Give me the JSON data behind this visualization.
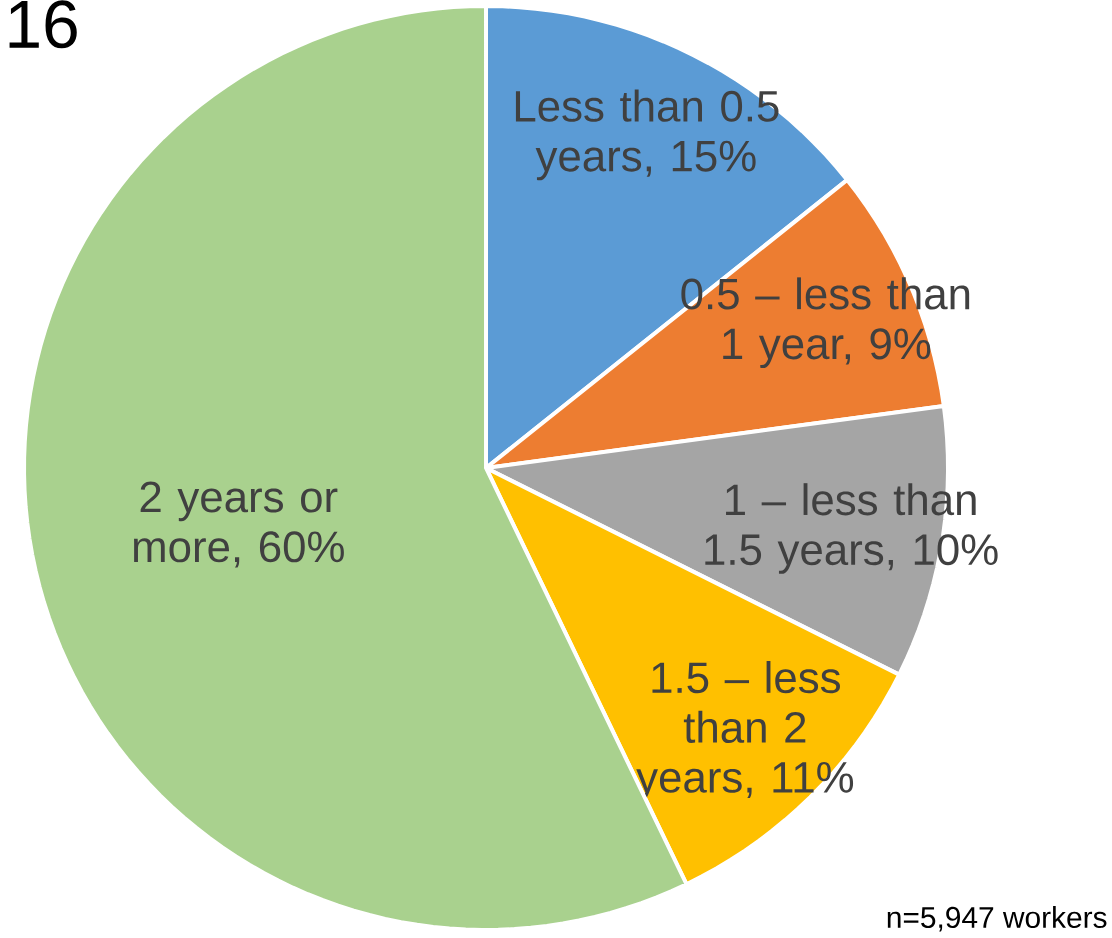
{
  "chart_data": {
    "type": "pie",
    "categories": [
      "Less than 0.5 years, 15%",
      "0.5 – less than 1 year, 9%",
      "1 – less than 1.5 years, 10%",
      "1.5 – less than 2 years, 11%",
      "2 years or more, 60%"
    ],
    "values": [
      15,
      9,
      10,
      11,
      60
    ],
    "colors": [
      "#5b9bd5",
      "#ed7d31",
      "#a5a5a5",
      "#ffc000",
      "#a9d18e"
    ],
    "annotations": [
      "16",
      "n=5,947 workers"
    ]
  }
}
